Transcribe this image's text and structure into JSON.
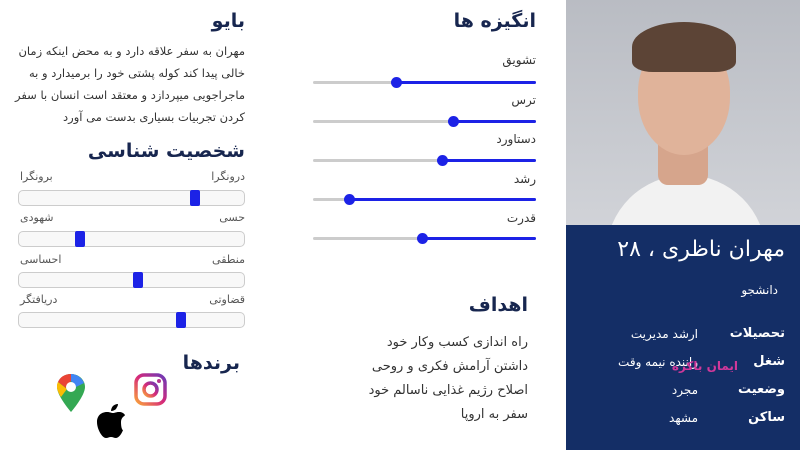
{
  "bio": {
    "title": "بایو",
    "text": "مهران به سفر علاقه دارد و به محض اینکه زمان خالی پیدا کند کوله پشتی خود را برمیدارد و به ماجراجویی میپردازد و معتقد است انسان با سفر کردن تجربیات بسیاری بدست می آورد"
  },
  "personality": {
    "title": "شخصیت شناسی",
    "traits": [
      {
        "right": "درونگرا",
        "left": "برونگرا",
        "position_from_left": 0.78
      },
      {
        "right": "حسی",
        "left": "شهودی",
        "position_from_left": 0.27
      },
      {
        "right": "منطقی",
        "left": "احساسی",
        "position_from_left": 0.53
      },
      {
        "right": "قضاوتی",
        "left": "دریافتگر",
        "position_from_left": 0.72
      }
    ]
  },
  "brands": {
    "title": "برندها",
    "icons": [
      "google-maps-icon",
      "instagram-icon",
      "apple-icon"
    ]
  },
  "motivations": {
    "title": "انگیزه ها",
    "items": [
      {
        "label": "تشویق",
        "level": 0.63
      },
      {
        "label": "ترس",
        "level": 0.37
      },
      {
        "label": "دستاورد",
        "level": 0.42
      },
      {
        "label": "رشد",
        "level": 0.84
      },
      {
        "label": "قدرت",
        "level": 0.51
      }
    ]
  },
  "goals": {
    "title": "اهداف",
    "items": [
      "راه اندازی کسب  وکار خود",
      "داشتن آرامش فکری و روحی",
      "اصلاح رژیم غذایی ناسالم خود",
      "سفر به اروپا"
    ]
  },
  "profile": {
    "name": "مهران ناظری ، ۲۸",
    "role": "دانشجو",
    "details": [
      {
        "key": "تحصیلات",
        "value": "ارشد مدیریت"
      },
      {
        "key": "شغل",
        "value": "راننده نیمه وقت"
      },
      {
        "key": "وضعیت",
        "value": "مجرد"
      },
      {
        "key": "ساکن",
        "value": "مشهد"
      }
    ],
    "watermark": "ایمان باکره"
  },
  "colors": {
    "navy": "#142e66",
    "accent": "#1c22e6",
    "watermark": "#d0389a"
  }
}
